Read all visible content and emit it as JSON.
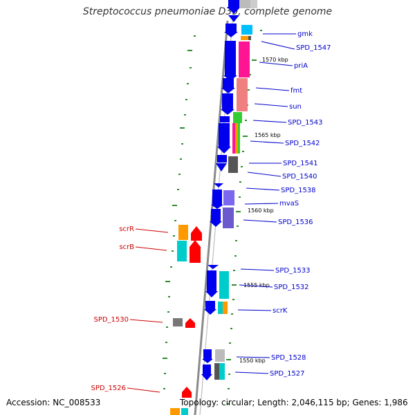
{
  "title": "Streptococcus pneumoniae D39, complete genome",
  "footer": {
    "accession": "Accession: NC_008533",
    "topology": "Topology: circular; Length: 2,046,115 bp; Genes: 1,986"
  },
  "colors": {
    "forward_label": "#0000cc",
    "reverse_label": "#cc0000",
    "backbone": "#8a8a8a",
    "tick": "#2e8b2e",
    "blue_gene": "#0000ee",
    "red_gene": "#ff0000",
    "cyan_gene": "#00cccc",
    "orange_gene": "#ff9900",
    "magenta_gene": "#ff1493",
    "salmon_gene": "#f08080",
    "green_gene": "#32cd32",
    "gray_gene": "#666666",
    "slate_gene": "#7b68ee"
  },
  "kbp_labels": [
    "1570 kbp",
    "1565 kbp",
    "1560 kbp",
    "1555 kbp",
    "1550 kbp"
  ],
  "forward_labels": [
    "gmk",
    "SPD_1547",
    "priA",
    "fmt",
    "sun",
    "SPD_1543",
    "SPD_1542",
    "SPD_1541",
    "SPD_1540",
    "SPD_1538",
    "mvaS",
    "SPD_1536",
    "SPD_1533",
    "SPD_1532",
    "scrK",
    "SPD_1528",
    "SPD_1527"
  ],
  "reverse_labels": [
    "scrR",
    "scrB",
    "SPD_1530",
    "SPD_1526"
  ]
}
